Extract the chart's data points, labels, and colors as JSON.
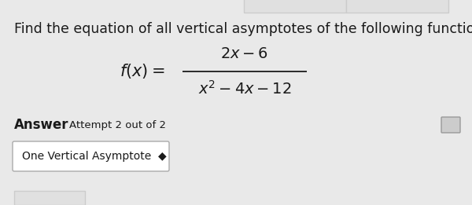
{
  "background_color": "#e9e9e9",
  "title_text": "Find the equation of all vertical asymptotes of the following function.",
  "title_fontsize": 12.5,
  "text_color": "#1a1a1a",
  "formula_fx": "$f(x) =$",
  "formula_numerator": "$2x - 6$",
  "formula_denominator": "$x^2 - 4x - 12$",
  "answer_bold": "Answer",
  "answer_normal": "Attempt 2 out of 2",
  "dropdown_label": "One Vertical Asymptote  ◆",
  "dropdown_bg": "#ffffff",
  "dropdown_border": "#aaaaaa",
  "icon_color": "#cccccc",
  "icon_border": "#999999",
  "topbox_bg": "#e0e0e0",
  "topbox_border": "#cccccc"
}
